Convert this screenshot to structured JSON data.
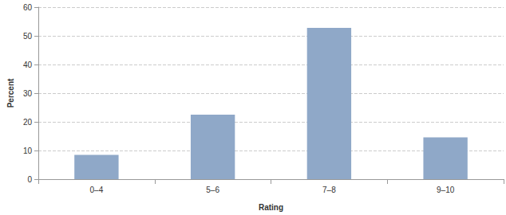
{
  "chart_data": {
    "type": "bar",
    "x_label": "Rating",
    "y_label": "Percent",
    "categories": [
      "0–4",
      "5–6",
      "7–8",
      "9–10"
    ],
    "values": [
      8.5,
      22.5,
      52.8,
      14.6
    ],
    "color": "#8fa8c8",
    "ylim": [
      0,
      60
    ],
    "yticks": [
      0,
      10,
      20,
      30,
      40,
      50,
      60
    ],
    "grid": true
  }
}
